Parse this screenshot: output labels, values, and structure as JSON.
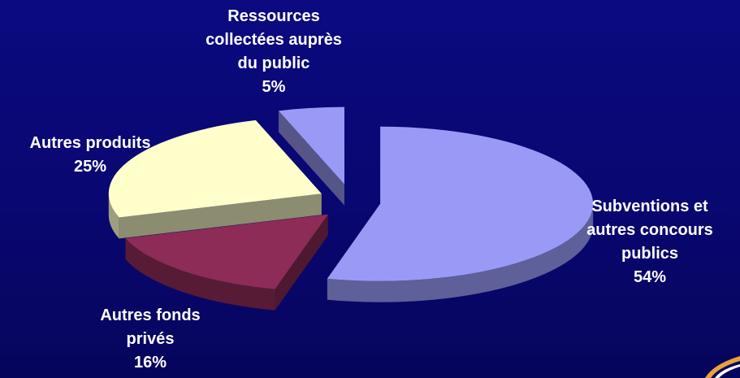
{
  "chart_data": {
    "type": "pie",
    "title": "",
    "slices": [
      {
        "label_lines": [
          "Subventions et",
          "autres concours",
          "publics"
        ],
        "percent_label": "54%",
        "value": 54,
        "color": "#9a9af6",
        "exploded": true
      },
      {
        "label_lines": [
          "Autres fonds",
          "privés"
        ],
        "percent_label": "16%",
        "value": 16,
        "color": "#8c2c57",
        "exploded": true
      },
      {
        "label_lines": [
          "Autres produits"
        ],
        "percent_label": "25%",
        "value": 25,
        "color": "#ffffcc",
        "exploded": true
      },
      {
        "label_lines": [
          "Ressources",
          "collectées auprès",
          "du public"
        ],
        "percent_label": "5%",
        "value": 5,
        "color": "#9a9af6",
        "exploded": true
      }
    ],
    "legend": "none",
    "style": "3d-exploded"
  },
  "colors": {
    "background": "#0a0878",
    "label_text": "#ffffff",
    "logo_accent": "#e8a23a"
  }
}
